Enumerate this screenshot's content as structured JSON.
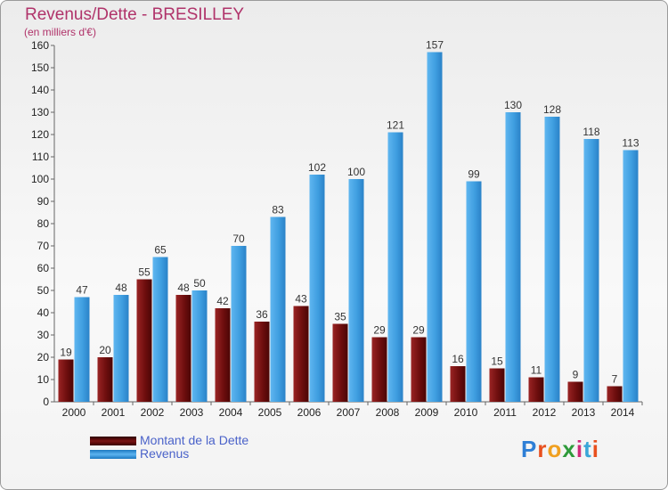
{
  "header": {
    "title": "Revenus/Dette - BRESILLEY",
    "subtitle": "(en milliers d'€)"
  },
  "legend": {
    "items": [
      {
        "label": "Montant de la Dette",
        "color": "#7a1414"
      },
      {
        "label": "Revenus",
        "color": "#3f9ee0"
      }
    ]
  },
  "logo": {
    "text": "Proxiti"
  },
  "chart_data": {
    "type": "bar",
    "categories": [
      "2000",
      "2001",
      "2002",
      "2003",
      "2004",
      "2005",
      "2006",
      "2007",
      "2008",
      "2009",
      "2010",
      "2011",
      "2012",
      "2013",
      "2014"
    ],
    "series": [
      {
        "name": "Montant de la Dette",
        "color": "#7a1414",
        "values": [
          19,
          20,
          55,
          48,
          42,
          36,
          43,
          35,
          29,
          29,
          16,
          15,
          11,
          9,
          7
        ]
      },
      {
        "name": "Revenus",
        "color": "#3f9ee0",
        "values": [
          47,
          48,
          65,
          50,
          70,
          83,
          102,
          100,
          121,
          157,
          99,
          130,
          128,
          118,
          113
        ]
      }
    ],
    "title": "Revenus/Dette - BRESILLEY",
    "subtitle": "(en milliers d'€)",
    "ylim": [
      0,
      160
    ],
    "yticks": [
      0,
      10,
      20,
      30,
      40,
      50,
      60,
      70,
      80,
      90,
      100,
      110,
      120,
      130,
      140,
      150,
      160
    ],
    "grid": false,
    "legend_position": "bottom-left"
  }
}
